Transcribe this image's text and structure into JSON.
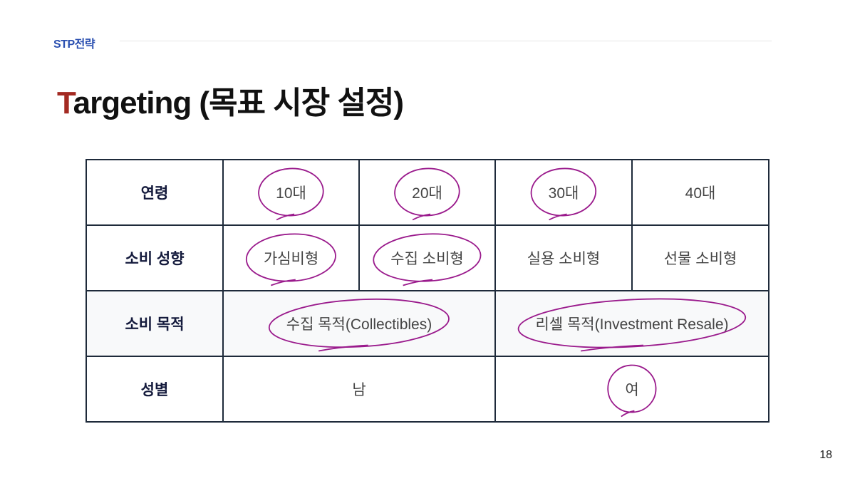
{
  "header": {
    "section": "STP전략",
    "title_first_letter": "T",
    "title_rest": "argeting (목표 시장 설정)"
  },
  "colors": {
    "section": "#2a4fb0",
    "accent_letter": "#a32a22",
    "circle_mark": "#9a1a8c",
    "table_border": "#1e2a3a"
  },
  "table": {
    "rows": [
      {
        "label": "연령",
        "cells": [
          {
            "text": "10대",
            "span": 1,
            "circled": true
          },
          {
            "text": "20대",
            "span": 1,
            "circled": true
          },
          {
            "text": "30대",
            "span": 1,
            "circled": true
          },
          {
            "text": "40대",
            "span": 1,
            "circled": false
          }
        ]
      },
      {
        "label": "소비 성향",
        "cells": [
          {
            "text": "가심비형",
            "span": 1,
            "circled": true
          },
          {
            "text": "수집 소비형",
            "span": 1,
            "circled": true
          },
          {
            "text": "실용 소비형",
            "span": 1,
            "circled": false
          },
          {
            "text": "선물 소비형",
            "span": 1,
            "circled": false
          }
        ]
      },
      {
        "label": "소비 목적",
        "shaded": true,
        "cells": [
          {
            "text": "수집 목적(Collectibles)",
            "span": 2,
            "circled": true
          },
          {
            "text": "리셀 목적(Investment Resale)",
            "span": 2,
            "circled": true
          }
        ]
      },
      {
        "label": "성별",
        "cells": [
          {
            "text": "남",
            "span": 2,
            "circled": false
          },
          {
            "text": "여",
            "span": 2,
            "circled": true
          }
        ]
      }
    ]
  },
  "footer": {
    "page_number": "18"
  }
}
